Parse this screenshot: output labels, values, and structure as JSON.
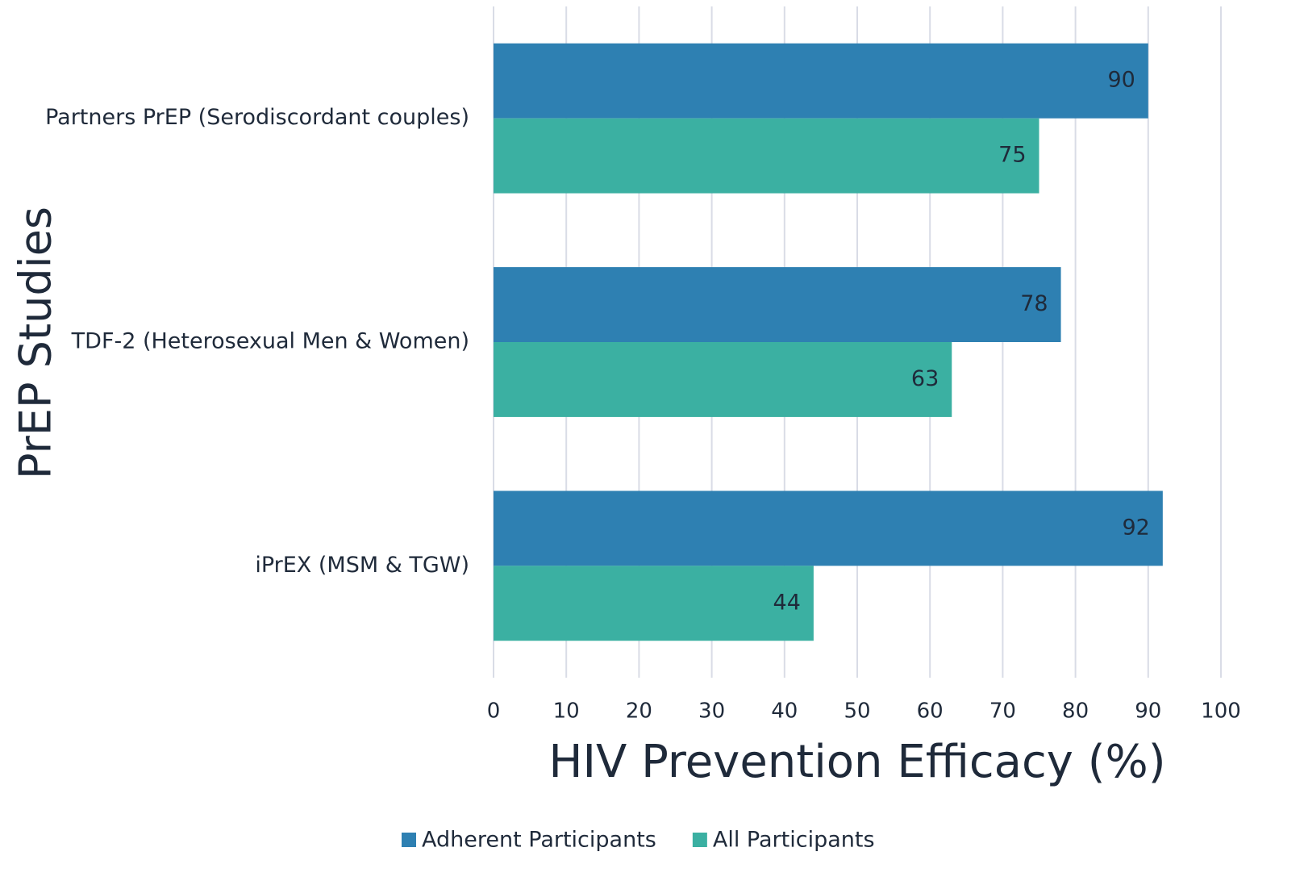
{
  "chart_data": {
    "type": "hbar",
    "xlabel": "HIV Prevention Efficacy (%)",
    "ylabel": "PrEP Studies",
    "categories": [
      "Partners PrEP (Serodiscordant couples)",
      "TDF-2 (Heterosexual Men & Women)",
      "iPrEX (MSM & TGW)"
    ],
    "series": [
      {
        "name": "Adherent Participants",
        "color": "#2e80b2",
        "values": [
          90,
          78,
          92
        ]
      },
      {
        "name": "All Participants",
        "color": "#3bb0a2",
        "values": [
          75,
          63,
          44
        ]
      }
    ],
    "xlim": [
      0,
      100
    ],
    "xticks": [
      0,
      10,
      20,
      30,
      40,
      50,
      60,
      70,
      80,
      90,
      100
    ],
    "grid": true,
    "legend": "bottom"
  }
}
